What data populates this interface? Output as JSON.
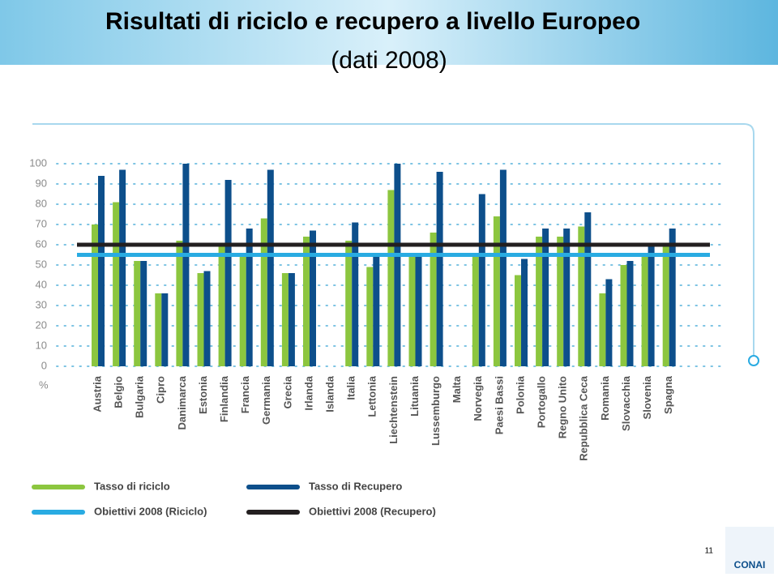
{
  "slide": {
    "title": "Risultati di riciclo e recupero a livello Europeo",
    "subtitle": "(dati 2008)",
    "page_number": "11",
    "logo": "CONAI"
  },
  "chart_data": {
    "type": "bar",
    "unit_label": "%",
    "categories": [
      "Austria",
      "Belgio",
      "Bulgaria",
      "Cipro",
      "Danimarca",
      "Estonia",
      "Finlandia",
      "Francia",
      "Germania",
      "Grecia",
      "Irlanda",
      "Islanda",
      "Italia",
      "Lettonia",
      "Liechtenstein",
      "Lituania",
      "Lussemburgo",
      "Malta",
      "Norvegia",
      "Paesi Bassi",
      "Polonia",
      "Portogallo",
      "Regno Unito",
      "Repubblica Ceca",
      "Romania",
      "Slovacchia",
      "Slovenia",
      "Spagna"
    ],
    "series": [
      {
        "name": "Tasso di riciclo",
        "color": "#8cc63f",
        "values": [
          70,
          81,
          52,
          36,
          62,
          46,
          59,
          56,
          73,
          46,
          64,
          null,
          62,
          49,
          87,
          54,
          66,
          null,
          56,
          74,
          45,
          64,
          64,
          69,
          36,
          50,
          55,
          61
        ]
      },
      {
        "name": "Tasso di Recupero",
        "color": "#0d4f8b",
        "values": [
          94,
          97,
          52,
          36,
          100,
          47,
          92,
          68,
          97,
          46,
          67,
          null,
          71,
          54,
          100,
          55,
          96,
          null,
          85,
          97,
          53,
          68,
          68,
          76,
          43,
          52,
          61,
          68
        ]
      }
    ],
    "reference_lines": [
      {
        "name": "Obiettivi 2008 (Riciclo)",
        "color": "#29abe2",
        "value": 55
      },
      {
        "name": "Obiettivi 2008 (Recupero)",
        "color": "#231f20",
        "value": 60
      }
    ],
    "ylim": [
      0,
      100
    ],
    "yticks": [
      0,
      10,
      20,
      30,
      40,
      50,
      60,
      70,
      80,
      90,
      100
    ],
    "grid": true
  }
}
